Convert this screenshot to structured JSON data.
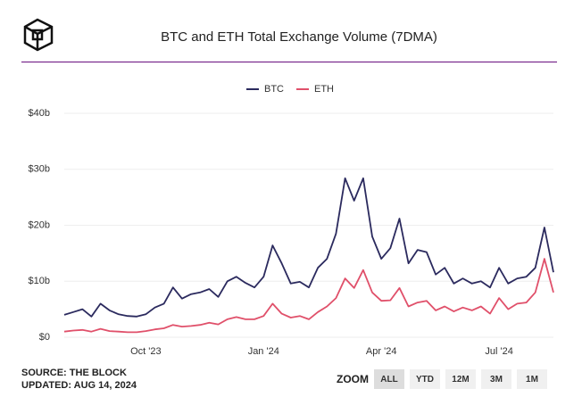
{
  "chart_data": {
    "type": "line",
    "title": "BTC and ETH Total Exchange Volume (7DMA)",
    "categories": [
      null,
      null,
      null,
      null,
      null,
      null,
      null,
      null,
      null,
      "Oct '23",
      null,
      null,
      null,
      null,
      null,
      null,
      null,
      null,
      null,
      null,
      null,
      null,
      "Jan '24",
      null,
      null,
      null,
      null,
      null,
      null,
      null,
      null,
      null,
      null,
      null,
      null,
      "Apr '24",
      null,
      null,
      null,
      null,
      null,
      null,
      null,
      null,
      null,
      null,
      null,
      null,
      "Jul '24",
      null,
      null,
      null,
      null,
      null,
      null
    ],
    "series": [
      {
        "name": "BTC",
        "color": "#2b2a5e",
        "values": [
          4.0,
          4.5,
          5.0,
          3.7,
          6.0,
          4.8,
          4.1,
          3.8,
          3.7,
          4.1,
          5.3,
          6.0,
          8.9,
          6.9,
          7.7,
          8.0,
          8.6,
          7.2,
          10.0,
          10.8,
          9.7,
          8.9,
          10.8,
          16.4,
          13.2,
          9.6,
          9.9,
          8.9,
          12.4,
          14.0,
          18.5,
          28.4,
          24.4,
          28.4,
          18.0,
          14.0,
          15.9,
          21.2,
          13.2,
          15.6,
          15.2,
          11.2,
          12.4,
          9.6,
          10.5,
          9.6,
          10.0,
          8.9,
          12.4,
          9.6,
          10.5,
          10.8,
          12.4,
          19.6,
          11.6
        ]
      },
      {
        "name": "ETH",
        "color": "#e0506a",
        "values": [
          1.0,
          1.2,
          1.3,
          1.0,
          1.5,
          1.1,
          1.0,
          0.9,
          0.9,
          1.1,
          1.4,
          1.6,
          2.2,
          1.9,
          2.0,
          2.2,
          2.6,
          2.3,
          3.2,
          3.6,
          3.2,
          3.2,
          3.8,
          6.0,
          4.2,
          3.5,
          3.8,
          3.2,
          4.5,
          5.5,
          7.0,
          10.5,
          8.8,
          12.0,
          8.0,
          6.5,
          6.6,
          8.8,
          5.5,
          6.2,
          6.5,
          4.8,
          5.5,
          4.6,
          5.3,
          4.8,
          5.5,
          4.2,
          7.0,
          5.0,
          6.0,
          6.2,
          8.0,
          14.0,
          8.0
        ]
      }
    ],
    "ylim": [
      0,
      40
    ],
    "yticks": [
      {
        "value": 0,
        "label": "$0"
      },
      {
        "value": 10,
        "label": "$10b"
      },
      {
        "value": 20,
        "label": "$20b"
      },
      {
        "value": 30,
        "label": "$30b"
      },
      {
        "value": 40,
        "label": "$40b"
      }
    ],
    "grid": true
  },
  "footer": {
    "source": "SOURCE: THE BLOCK",
    "updated": "UPDATED: AUG 14, 2024"
  },
  "zoom": {
    "label": "ZOOM",
    "buttons": [
      "ALL",
      "YTD",
      "12M",
      "3M",
      "1M"
    ]
  }
}
